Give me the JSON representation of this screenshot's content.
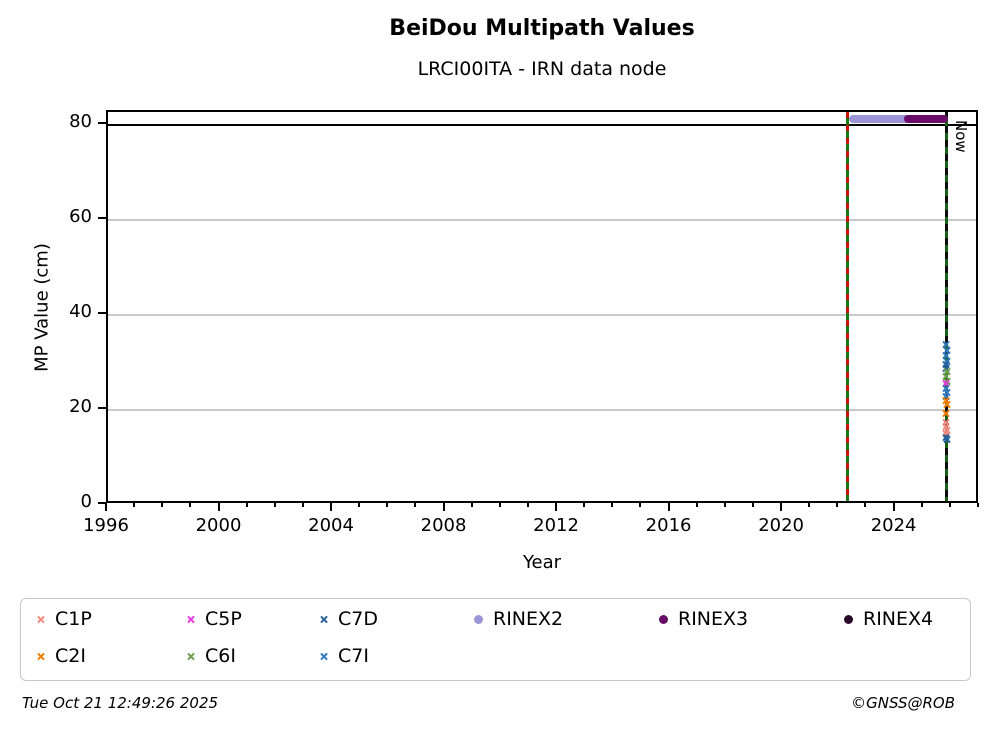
{
  "header": {
    "title": "BeiDou Multipath Values",
    "subtitle": "LRCI00ITA - IRN data node"
  },
  "footer": {
    "timestamp": "Tue Oct 21 12:49:26 2025",
    "credit": "©GNSS@ROB"
  },
  "chart_data": {
    "type": "scatter",
    "title": "BeiDou Multipath Values",
    "subtitle": "LRCI00ITA - IRN data node",
    "xlabel": "Year",
    "ylabel": "MP Value (cm)",
    "xlim": [
      1996,
      2027
    ],
    "ylim": [
      0,
      82.7
    ],
    "xticks_major": [
      1996,
      2000,
      2004,
      2008,
      2012,
      2016,
      2020,
      2024
    ],
    "xticks_minor_step": 1,
    "yticks": [
      0,
      20,
      40,
      60,
      80
    ],
    "grid_y": [
      20,
      40,
      60
    ],
    "grid": "horizontal",
    "legend_position": "bottom",
    "limit_line": {
      "y": 80,
      "color": "#000000"
    },
    "event_line": {
      "x": 2022.3,
      "dash_colors": [
        "#cc1100",
        "#157a15"
      ]
    },
    "now_line": {
      "x": 2025.8,
      "label": "Now",
      "dash_colors": [
        "#0d0d0d",
        "#156015"
      ]
    },
    "availability_bars": [
      {
        "name": "RINEX2",
        "x_start": 2022.35,
        "x_end": 2024.95,
        "y": 81.3,
        "color": "#9b94d6"
      },
      {
        "name": "RINEX3",
        "x_start": 2024.3,
        "x_end": 2025.88,
        "y": 81.3,
        "color": "#690d69"
      }
    ],
    "legend": {
      "items": [
        {
          "label": "C1P",
          "color": "#f2897e",
          "marker": "x"
        },
        {
          "label": "C5P",
          "color": "#ee3ae2",
          "marker": "x"
        },
        {
          "label": "C7D",
          "color": "#27649f",
          "marker": "x"
        },
        {
          "label": "RINEX2",
          "color": "#9b94d6",
          "marker": "circle"
        },
        {
          "label": "RINEX3",
          "color": "#690d69",
          "marker": "circle"
        },
        {
          "label": "RINEX4",
          "color": "#2a0a2a",
          "marker": "circle"
        },
        {
          "label": "C2I",
          "color": "#f07d02",
          "marker": "x"
        },
        {
          "label": "C6I",
          "color": "#6f9e50",
          "marker": "x"
        },
        {
          "label": "C7I",
          "color": "#3079bb",
          "marker": "x"
        }
      ]
    },
    "points": [
      {
        "series": "C7I",
        "x": 2025.78,
        "y": 33.8
      },
      {
        "series": "C7I",
        "x": 2025.81,
        "y": 32.6
      },
      {
        "series": "C7I",
        "x": 2025.79,
        "y": 31.4
      },
      {
        "series": "C7I",
        "x": 2025.82,
        "y": 30.3
      },
      {
        "series": "C7D",
        "x": 2025.8,
        "y": 29.6
      },
      {
        "series": "C7D",
        "x": 2025.78,
        "y": 28.7
      },
      {
        "series": "C6I",
        "x": 2025.81,
        "y": 28.0
      },
      {
        "series": "C6I",
        "x": 2025.79,
        "y": 27.1
      },
      {
        "series": "C6I",
        "x": 2025.82,
        "y": 25.9
      },
      {
        "series": "C5P",
        "x": 2025.78,
        "y": 25.6
      },
      {
        "series": "C7I",
        "x": 2025.8,
        "y": 24.6
      },
      {
        "series": "C7I",
        "x": 2025.81,
        "y": 23.7
      },
      {
        "series": "C7I",
        "x": 2025.79,
        "y": 22.9
      },
      {
        "series": "C2I",
        "x": 2025.8,
        "y": 21.9
      },
      {
        "series": "C2I",
        "x": 2025.81,
        "y": 21.2
      },
      {
        "series": "C2I",
        "x": 2025.8,
        "y": 19.2
      },
      {
        "series": "C1P",
        "x": 2025.79,
        "y": 17.4
      },
      {
        "series": "C1P",
        "x": 2025.8,
        "y": 16.6
      },
      {
        "series": "C1P",
        "x": 2025.81,
        "y": 15.7
      },
      {
        "series": "C1P",
        "x": 2025.8,
        "y": 15.0
      },
      {
        "series": "C7D",
        "x": 2025.8,
        "y": 14.3
      },
      {
        "series": "C7D",
        "x": 2025.81,
        "y": 13.7
      }
    ]
  }
}
